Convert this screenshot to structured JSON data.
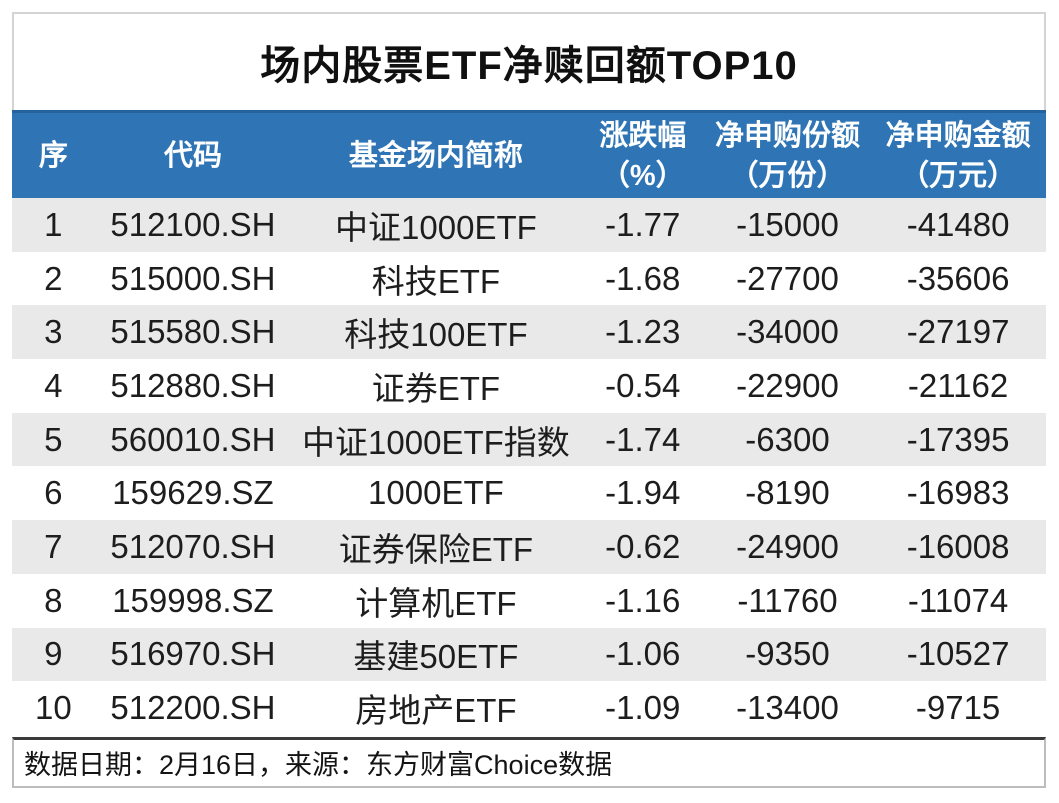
{
  "title": "场内股票ETF净赎回额TOP10",
  "chart_data": {
    "type": "table",
    "title": "场内股票ETF净赎回额TOP10",
    "columns": [
      "序",
      "代码",
      "基金场内简称",
      "涨跌幅（%）",
      "净申购份额（万份）",
      "净申购金额（万元）"
    ],
    "rows": [
      [
        "1",
        "512100.SH",
        "中证1000ETF",
        "-1.77",
        "-15000",
        "-41480"
      ],
      [
        "2",
        "515000.SH",
        "科技ETF",
        "-1.68",
        "-27700",
        "-35606"
      ],
      [
        "3",
        "515580.SH",
        "科技100ETF",
        "-1.23",
        "-34000",
        "-27197"
      ],
      [
        "4",
        "512880.SH",
        "证券ETF",
        "-0.54",
        "-22900",
        "-21162"
      ],
      [
        "5",
        "560010.SH",
        "中证1000ETF指数",
        "-1.74",
        "-6300",
        "-17395"
      ],
      [
        "6",
        "159629.SZ",
        "1000ETF",
        "-1.94",
        "-8190",
        "-16983"
      ],
      [
        "7",
        "512070.SH",
        "证券保险ETF",
        "-0.62",
        "-24900",
        "-16008"
      ],
      [
        "8",
        "159998.SZ",
        "计算机ETF",
        "-1.16",
        "-11760",
        "-11074"
      ],
      [
        "9",
        "516970.SH",
        "基建50ETF",
        "-1.06",
        "-9350",
        "-10527"
      ],
      [
        "10",
        "512200.SH",
        "房地产ETF",
        "-1.09",
        "-13400",
        "-9715"
      ]
    ]
  },
  "header_display": [
    {
      "line1": "序",
      "line2": ""
    },
    {
      "line1": "代码",
      "line2": ""
    },
    {
      "line1": "基金场内简称",
      "line2": ""
    },
    {
      "line1": "涨跌幅",
      "line2": "（%）"
    },
    {
      "line1": "净申购份额",
      "line2": "（万份）"
    },
    {
      "line1": "净申购金额",
      "line2": "（万元）"
    }
  ],
  "footer": {
    "note": "数据日期：2月16日，来源：东方财富Choice数据"
  },
  "colors": {
    "header_bg": "#2F75B5",
    "header_top_border": "#25629E",
    "header_text": "#FFFFFF",
    "stripe_bg": "#E9E9E9",
    "row_text": "#1D1D1D",
    "title_box_border": "#D4D4D4",
    "footer_top_border": "#3A3A3A",
    "footer_border": "#BDBDBD"
  }
}
